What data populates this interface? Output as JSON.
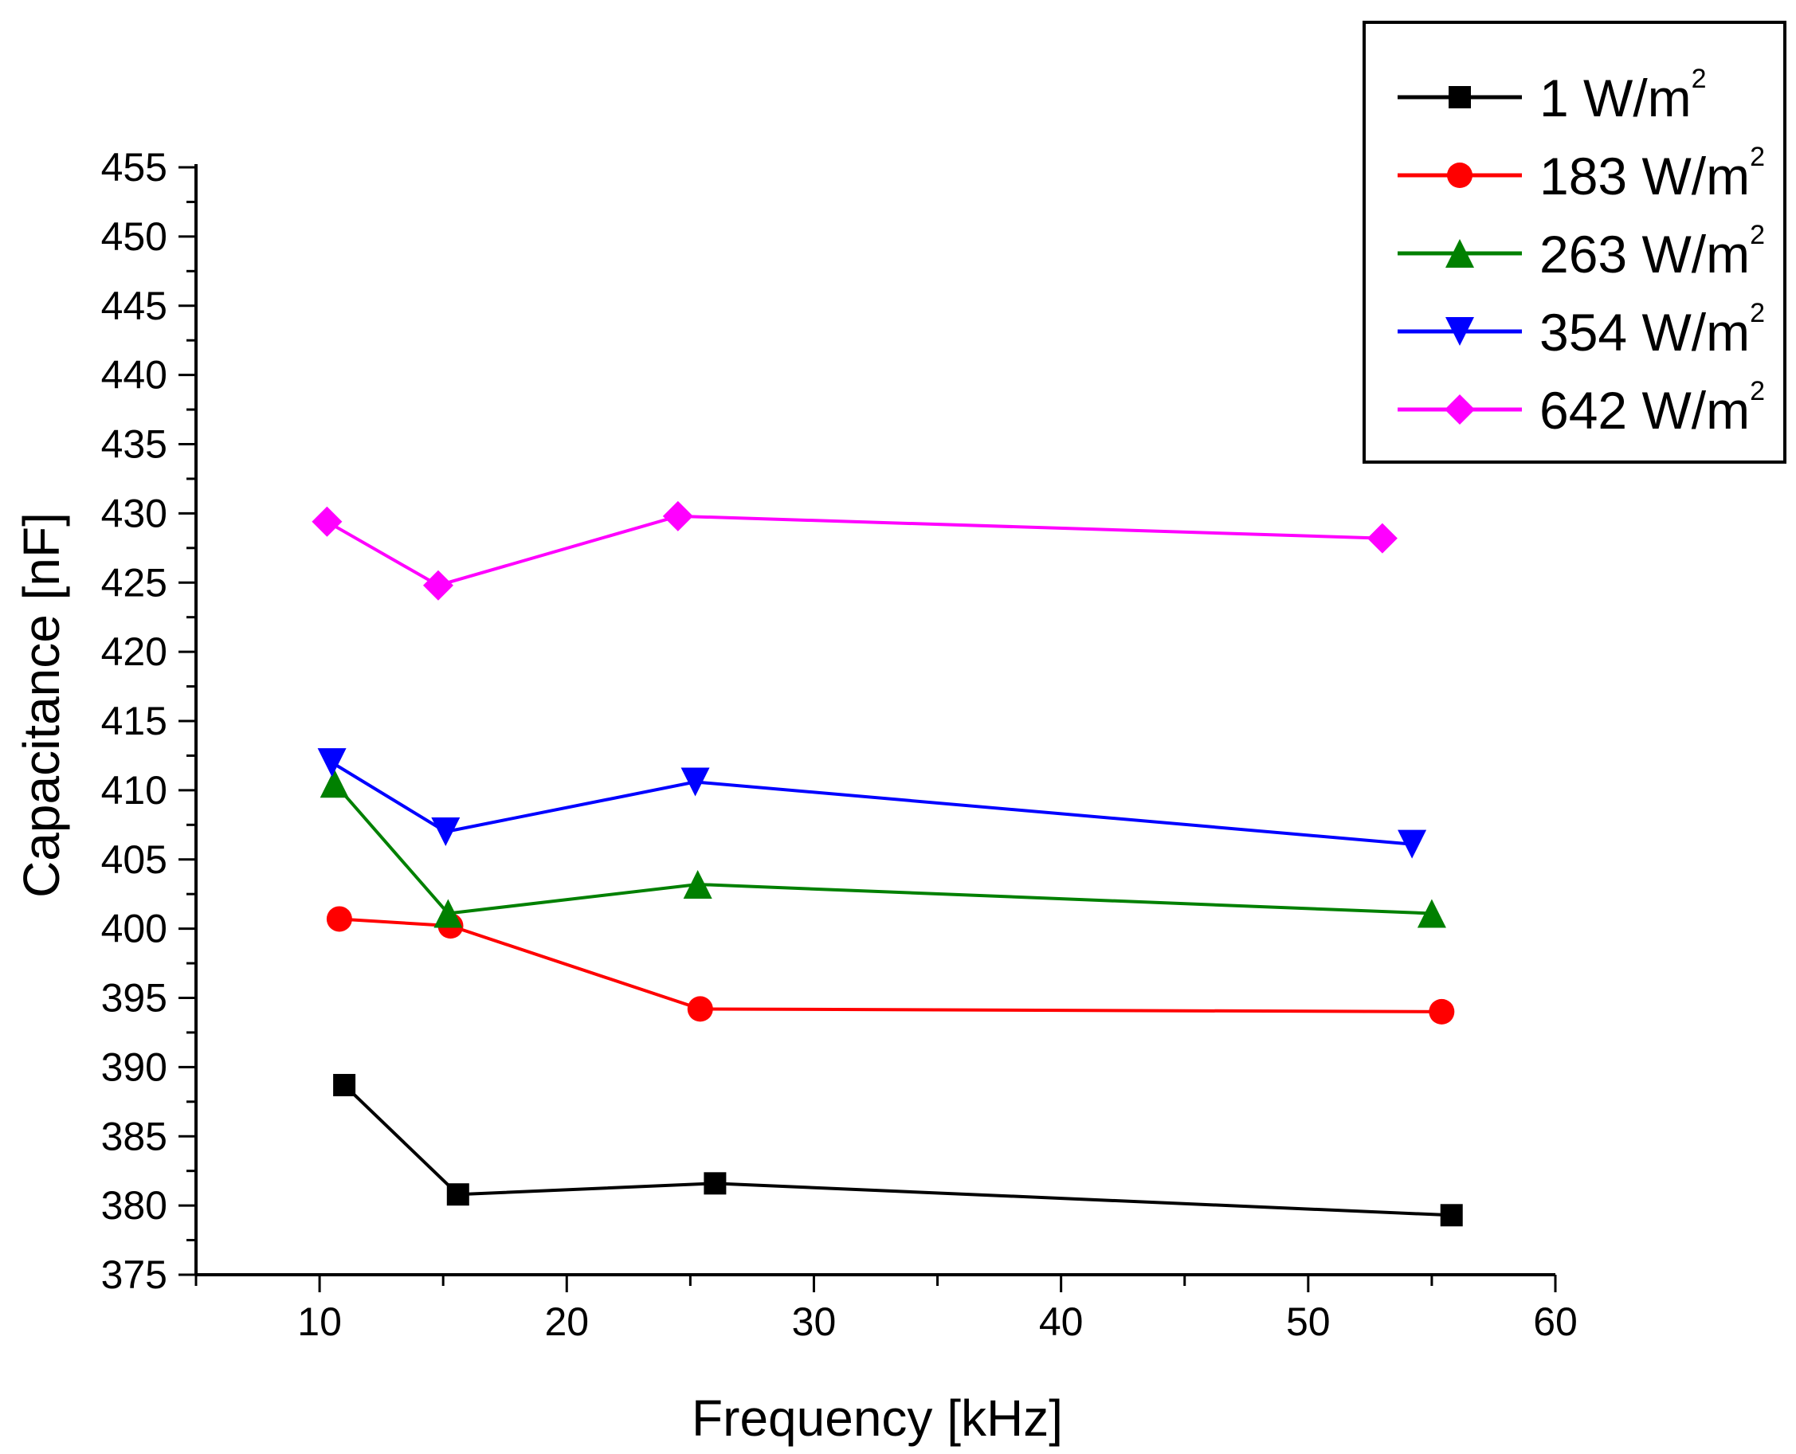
{
  "chart_data": {
    "type": "line",
    "title": "",
    "xlabel": "Frequency [kHz]",
    "ylabel": "Capacitance [nF]",
    "xlim": [
      5,
      60
    ],
    "ylim": [
      375,
      455
    ],
    "x_ticks": [
      10,
      20,
      30,
      40,
      50,
      60
    ],
    "x_tick_labels": [
      "10",
      "20",
      "30",
      "40",
      "50",
      "60"
    ],
    "y_ticks": [
      375,
      380,
      385,
      390,
      395,
      400,
      405,
      410,
      415,
      420,
      425,
      430,
      435,
      440,
      445,
      450,
      455
    ],
    "y_tick_labels": [
      "375",
      "380",
      "385",
      "390",
      "395",
      "400",
      "405",
      "410",
      "415",
      "420",
      "425",
      "430",
      "435",
      "440",
      "445",
      "450",
      "455"
    ],
    "grid": false,
    "legend_position": "top-right",
    "series": [
      {
        "name": "1 W/m2",
        "label_main": "1 W/m",
        "label_sup": "2",
        "color": "#000000",
        "marker": "square",
        "x": [
          11.0,
          15.6,
          26.0,
          55.8
        ],
        "y": [
          388.7,
          380.8,
          381.6,
          379.3
        ]
      },
      {
        "name": "183 W/m2",
        "label_main": "183 W/m",
        "label_sup": "2",
        "color": "#ff0000",
        "marker": "circle",
        "x": [
          10.8,
          15.3,
          25.4,
          55.4
        ],
        "y": [
          400.7,
          400.2,
          394.2,
          394.0
        ]
      },
      {
        "name": "263 W/m2",
        "label_main": "263 W/m",
        "label_sup": "2",
        "color": "#008000",
        "marker": "triangle-up",
        "x": [
          10.6,
          15.2,
          25.3,
          55.0
        ],
        "y": [
          410.5,
          401.1,
          403.2,
          401.1
        ]
      },
      {
        "name": "354 W/m2",
        "label_main": "354 W/m",
        "label_sup": "2",
        "color": "#0000ff",
        "marker": "triangle-down",
        "x": [
          10.5,
          15.1,
          25.2,
          54.2
        ],
        "y": [
          412.0,
          407.0,
          410.6,
          406.1
        ]
      },
      {
        "name": "642 W/m2",
        "label_main": "642 W/m",
        "label_sup": "2",
        "color": "#ff00ff",
        "marker": "diamond",
        "x": [
          10.3,
          14.8,
          24.5,
          53.0
        ],
        "y": [
          429.4,
          424.8,
          429.8,
          428.2
        ]
      }
    ]
  }
}
